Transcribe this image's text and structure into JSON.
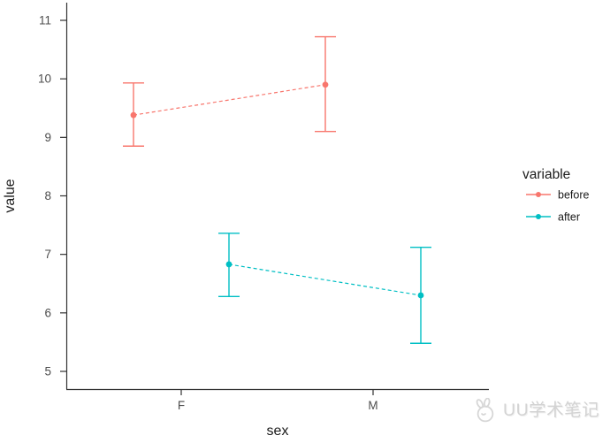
{
  "watermark": {
    "text": "UU学术笔记",
    "logo": "rabbit-face"
  },
  "chart_data": {
    "type": "line",
    "subtype": "points-with-errorbars-dashed-connectors",
    "title": "",
    "xlabel": "sex",
    "ylabel": "value",
    "categories": [
      "F",
      "M"
    ],
    "yticks": [
      5,
      6,
      7,
      8,
      9,
      10,
      11
    ],
    "ylim": [
      4.7,
      11.3
    ],
    "grid": false,
    "legend": {
      "title": "variable",
      "position": "right"
    },
    "series": [
      {
        "name": "before",
        "color": "#F8766D",
        "linestyle": "dashed",
        "means": [
          9.38,
          9.9
        ],
        "lower": [
          8.85,
          9.1
        ],
        "upper": [
          9.93,
          10.72
        ]
      },
      {
        "name": "after",
        "color": "#00BFC4",
        "linestyle": "dashed",
        "means": [
          6.83,
          6.3
        ],
        "lower": [
          6.28,
          5.48
        ],
        "upper": [
          7.36,
          7.12
        ]
      }
    ],
    "axis_text_color": "#4d4d4d",
    "axis_line_color": "#333333"
  }
}
